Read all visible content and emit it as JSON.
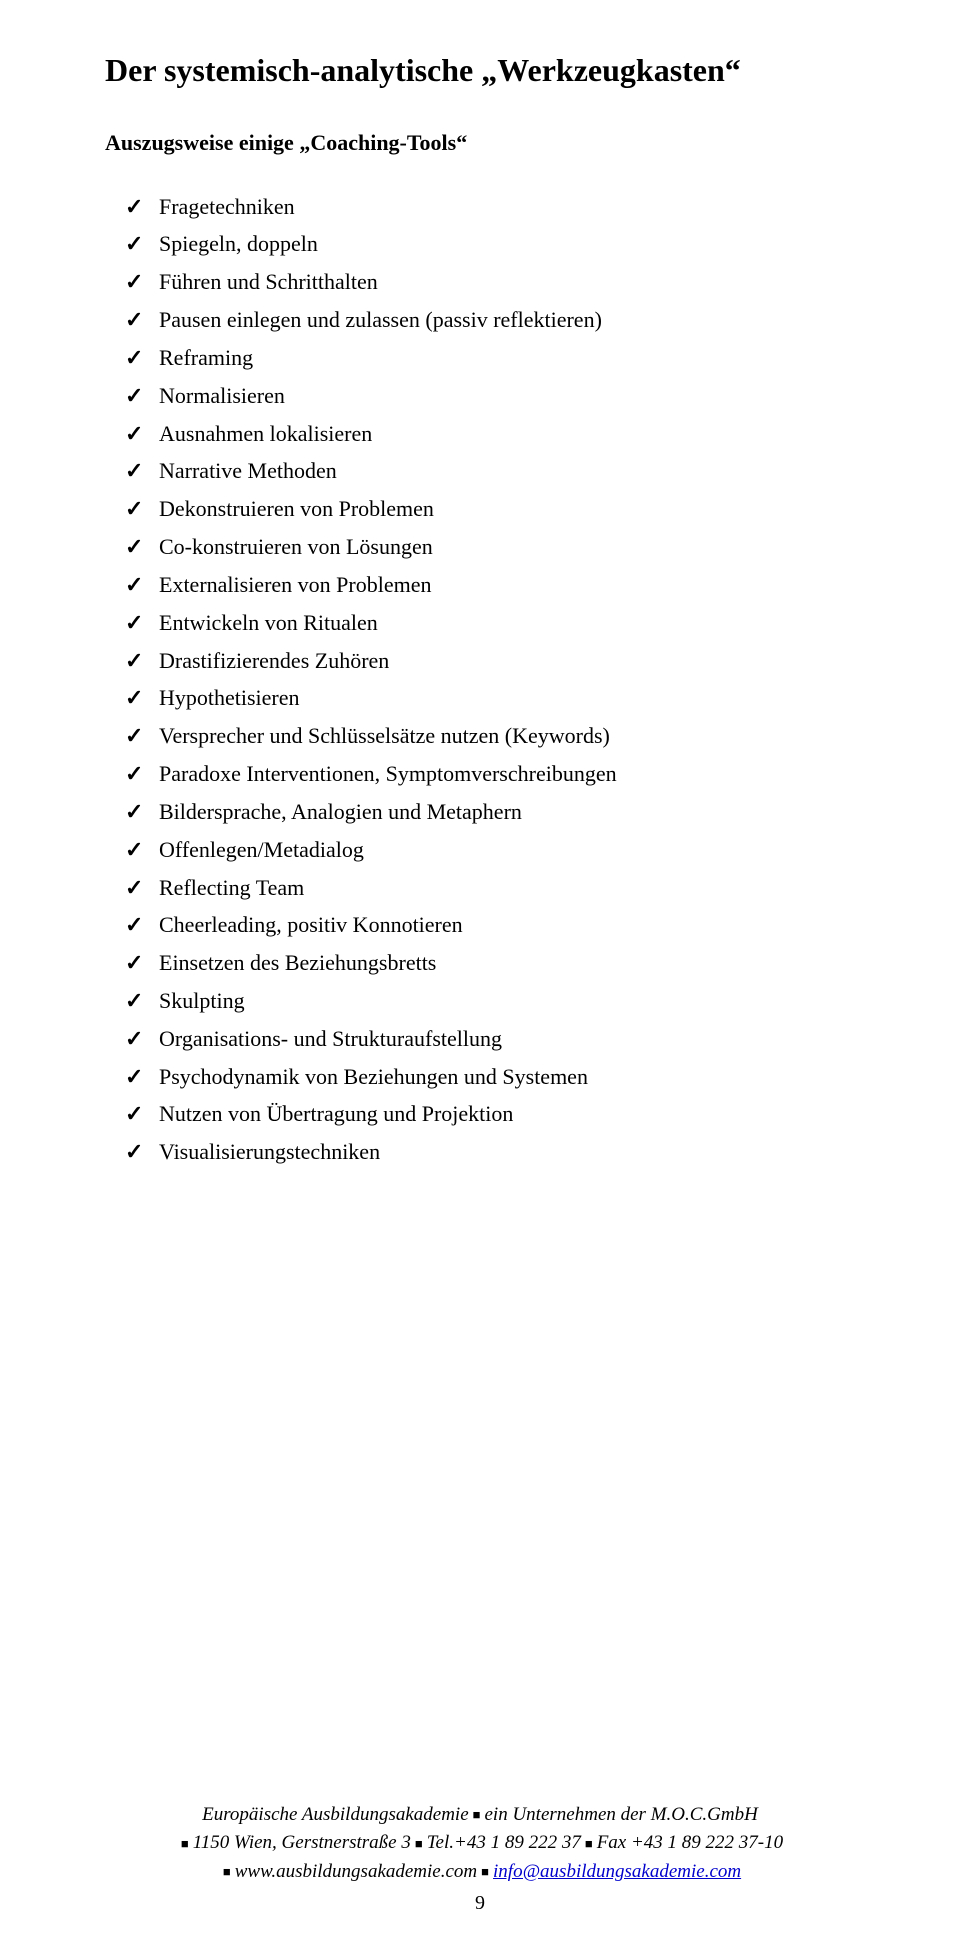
{
  "title": "Der systemisch-analytische „Werkzeugkasten“",
  "subtitle": "Auszugsweise einige „Coaching-Tools“",
  "items": [
    "Fragetechniken",
    "Spiegeln, doppeln",
    "Führen und Schritthalten",
    "Pausen einlegen und zulassen (passiv reflektieren)",
    "Reframing",
    "Normalisieren",
    "Ausnahmen lokalisieren",
    "Narrative Methoden",
    "Dekonstruieren von Problemen",
    "Co-konstruieren von Lösungen",
    "Externalisieren von Problemen",
    "Entwickeln von Ritualen",
    "Drastifizierendes Zuhören",
    "Hypothetisieren",
    "Versprecher und Schlüsselsätze nutzen (Keywords)",
    "Paradoxe Interventionen, Symptomverschreibungen",
    "Bildersprache, Analogien und Metaphern",
    "Offenlegen/Metadialog",
    "Reflecting Team",
    "Cheerleading, positiv Konnotieren",
    "Einsetzen des Beziehungsbretts",
    "Skulpting",
    "Organisations- und Strukturaufstellung",
    "Psychodynamik von Beziehungen und Systemen",
    "Nutzen von Übertragung und Projektion",
    "Visualisierungstechniken"
  ],
  "footer": {
    "line1a": "Europäische Ausbildungsakademie",
    "line1b": "ein Unternehmen der M.O.C.GmbH",
    "line2a": "1150 Wien, Gerstnerstraße 3",
    "line2b": "Tel.+43 1 89 222 37",
    "line2c": "Fax +43 1 89 222 37-10",
    "line3a": "www.ausbildungsakademie.com",
    "line3b": "info@ausbildungsakademie.com",
    "pagenum": "9"
  }
}
